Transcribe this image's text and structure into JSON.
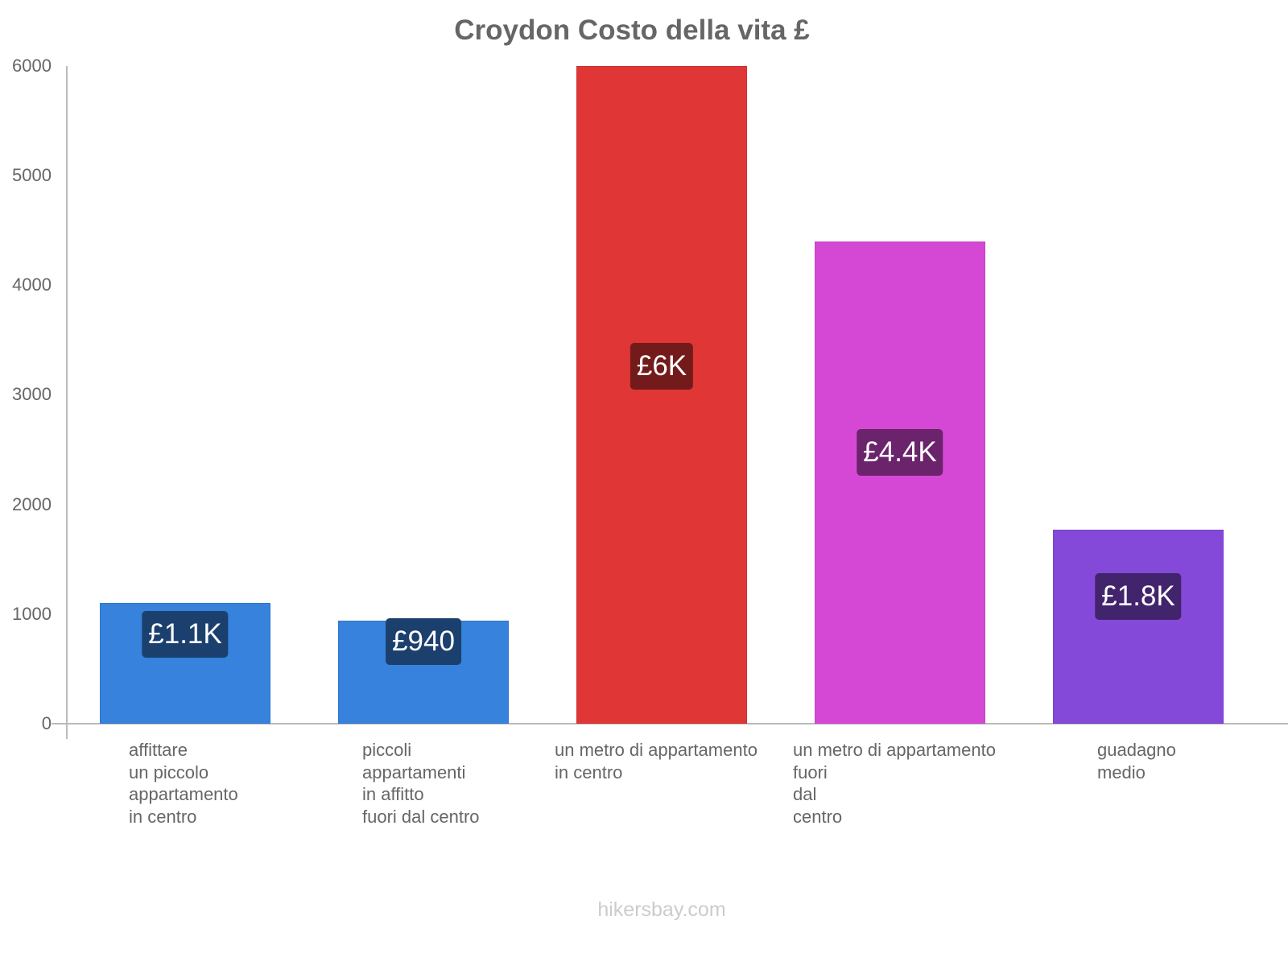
{
  "chart_data": {
    "type": "bar",
    "title": "Croydon Costo della vita £",
    "xlabel": "",
    "ylabel": "",
    "ylim": [
      0,
      6000
    ],
    "yticks": [
      "0",
      "1000",
      "2000",
      "3000",
      "4000",
      "5000",
      "6000"
    ],
    "grid": false,
    "legend": null,
    "categories": [
      "affittare un piccolo appartamento in centro",
      "piccoli appartamenti in affitto fuori dal centro",
      "un metro di appartamento in centro",
      "un metro di appartamento fuori dal centro",
      "guadagno medio"
    ],
    "category_lines": [
      "affittare\nun piccolo\nappartamento\nin centro",
      "piccoli\nappartamenti\nin affitto\nfuori dal centro",
      "un metro di appartamento\nin centro",
      "un metro di appartamento\nfuori\ndal\ncentro",
      "guadagno\nmedio"
    ],
    "values": [
      1100,
      940,
      6000,
      4400,
      1770
    ],
    "data_labels": [
      "£1.1K",
      "£940",
      "£6K",
      "£4.4K",
      "£1.8K"
    ],
    "bar_colors": [
      "#3682dc",
      "#3682dc",
      "#e03636",
      "#d548d5",
      "#8449d8"
    ],
    "label_colors": [
      "#1c406e",
      "#1c406e",
      "#731b1b",
      "#6b246b",
      "#42246c"
    ]
  },
  "footer": "hikersbay.com"
}
